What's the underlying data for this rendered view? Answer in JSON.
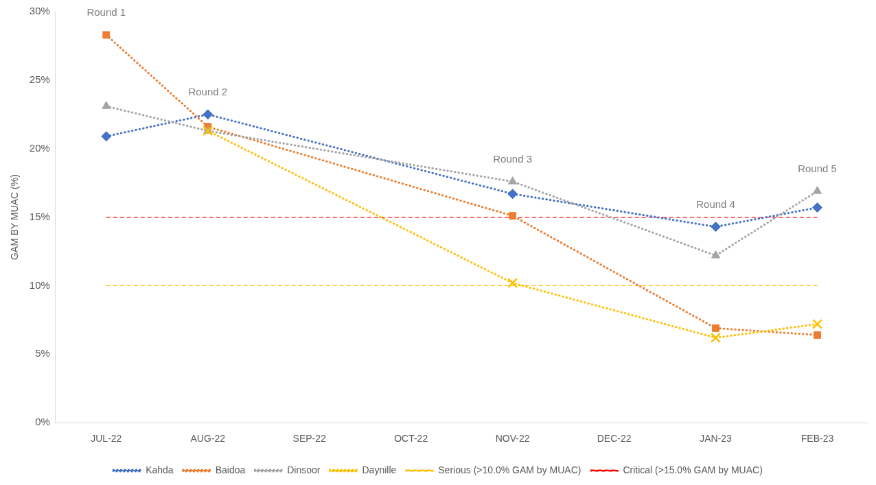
{
  "chart_data": {
    "type": "line",
    "ylabel": "GAM BY MUAC (%)",
    "categories": [
      "JUL-22",
      "AUG-22",
      "SEP-22",
      "OCT-22",
      "NOV-22",
      "DEC-22",
      "JAN-23",
      "FEB-23"
    ],
    "series": [
      {
        "name": "Kahda",
        "color": "#4472c4",
        "marker": "diamond",
        "values": [
          20.9,
          22.5,
          null,
          null,
          16.7,
          null,
          14.3,
          15.7
        ]
      },
      {
        "name": "Baidoa",
        "color": "#ed7d31",
        "marker": "square",
        "values": [
          28.3,
          21.6,
          null,
          null,
          15.1,
          null,
          6.9,
          6.4
        ]
      },
      {
        "name": "Dinsoor",
        "color": "#a5a5a5",
        "marker": "triangle",
        "values": [
          23.1,
          21.3,
          null,
          null,
          17.6,
          null,
          12.2,
          16.9
        ]
      },
      {
        "name": "Daynille",
        "color": "#ffc000",
        "marker": "cross",
        "values": [
          null,
          21.3,
          null,
          null,
          10.2,
          null,
          6.2,
          7.2
        ]
      }
    ],
    "line_style": "dotted",
    "ref_lines": [
      {
        "axis": "y",
        "value": 10,
        "label": "Serious (>10.0% GAM by MUAC)",
        "color": "#ffc000",
        "line_style": "dashed"
      },
      {
        "axis": "y",
        "value": 15,
        "label": "Critical (>15.0% GAM by MUAC)",
        "color": "#ff0000",
        "line_style": "dashed"
      }
    ],
    "ylim": [
      0,
      30
    ],
    "yticks": [
      {
        "value": 0,
        "label": "0%"
      },
      {
        "value": 5,
        "label": "5%"
      },
      {
        "value": 10,
        "label": "10%"
      },
      {
        "value": 15,
        "label": "15%"
      },
      {
        "value": 20,
        "label": "20%"
      },
      {
        "value": 25,
        "label": "25%"
      },
      {
        "value": 30,
        "label": "30%"
      }
    ],
    "annotations": [
      "Round 1",
      "Round 2",
      "Round 3",
      "Round 4",
      "Round 5"
    ],
    "grid": false,
    "legend": "bottom"
  }
}
